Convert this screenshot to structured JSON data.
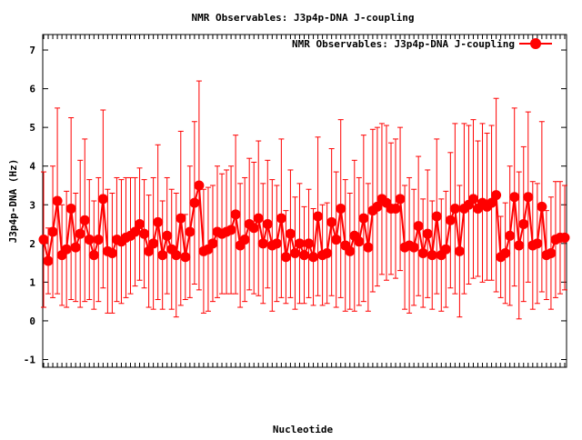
{
  "chart_data": {
    "type": "line",
    "title": "NMR Observables: J3p4p-DNA J-coupling",
    "xlabel": "Nucleotide",
    "ylabel": "J3p4p-DNA (Hz)",
    "ylim": [
      -1.2,
      7.4
    ],
    "yticks": [
      -1,
      0,
      1,
      2,
      3,
      4,
      5,
      6,
      7
    ],
    "grid": false,
    "legend_position": "top-right",
    "series": [
      {
        "name": "NMR Observables: J3p4p-DNA J-coupling",
        "color": "#ff0000",
        "y": [
          2.1,
          1.55,
          2.3,
          3.1,
          1.7,
          1.85,
          2.9,
          1.9,
          2.25,
          2.6,
          2.1,
          1.7,
          2.1,
          3.15,
          1.8,
          1.75,
          2.1,
          2.05,
          2.15,
          2.2,
          2.3,
          2.5,
          2.25,
          1.8,
          2.0,
          2.55,
          1.7,
          2.2,
          1.85,
          1.7,
          2.65,
          1.65,
          2.3,
          3.05,
          3.5,
          1.8,
          1.85,
          2.0,
          2.3,
          2.25,
          2.3,
          2.35,
          2.75,
          1.95,
          2.1,
          2.5,
          2.4,
          2.65,
          2.0,
          2.5,
          1.95,
          2.0,
          2.65,
          1.65,
          2.25,
          1.75,
          2.0,
          1.7,
          2.0,
          1.65,
          2.7,
          1.7,
          1.75,
          2.55,
          2.1,
          2.9,
          1.95,
          1.8,
          2.2,
          2.05,
          2.65,
          1.9,
          2.85,
          2.95,
          3.15,
          3.05,
          2.9,
          2.9,
          3.15,
          1.9,
          1.95,
          1.9,
          2.45,
          1.75,
          2.25,
          1.7,
          2.7,
          1.7,
          1.85,
          2.6,
          2.9,
          1.8,
          2.9,
          3.0,
          3.15,
          2.9,
          3.05,
          2.95,
          3.05,
          3.25,
          1.65,
          1.75,
          2.2,
          3.2,
          1.95,
          2.5,
          3.2,
          1.95,
          2.0,
          2.95,
          1.7,
          1.75,
          2.1,
          2.15,
          2.15
        ],
        "err": [
          1.75,
          0.85,
          1.7,
          2.4,
          1.3,
          1.5,
          2.35,
          1.4,
          1.9,
          2.1,
          1.55,
          1.4,
          1.6,
          2.3,
          1.6,
          1.55,
          1.6,
          1.6,
          1.55,
          1.5,
          1.4,
          1.45,
          1.4,
          1.45,
          1.7,
          2.0,
          1.4,
          1.5,
          1.55,
          1.6,
          2.25,
          1.1,
          1.7,
          2.1,
          2.7,
          1.6,
          1.6,
          1.5,
          1.7,
          1.55,
          1.6,
          1.65,
          2.05,
          1.6,
          1.6,
          1.7,
          1.7,
          2.0,
          1.55,
          1.65,
          1.7,
          1.5,
          2.05,
          1.2,
          1.65,
          1.45,
          1.55,
          1.25,
          1.4,
          1.25,
          2.05,
          1.3,
          1.3,
          1.9,
          1.75,
          2.3,
          1.7,
          1.5,
          1.95,
          1.65,
          2.15,
          1.65,
          2.1,
          2.05,
          1.95,
          2.0,
          1.7,
          1.8,
          1.85,
          1.6,
          1.75,
          1.5,
          1.8,
          1.4,
          1.65,
          1.4,
          2.0,
          1.45,
          1.5,
          1.75,
          2.2,
          1.7,
          2.2,
          2.05,
          2.05,
          1.75,
          2.05,
          1.9,
          2.0,
          2.5,
          1.05,
          1.3,
          1.8,
          2.3,
          1.9,
          2.0,
          2.2,
          1.65,
          1.55,
          2.2,
          1.15,
          1.45,
          1.5,
          1.45,
          1.35
        ]
      }
    ]
  }
}
